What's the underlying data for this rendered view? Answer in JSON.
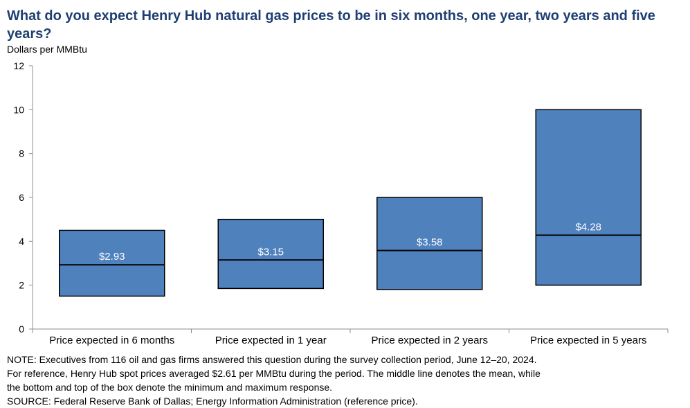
{
  "chart_data": {
    "type": "box",
    "title": "What do you expect Henry Hub natural gas prices to be in six months, one year, two years and five years?",
    "ylabel": "Dollars per MMBtu",
    "ylim": [
      0,
      12
    ],
    "yticks": [
      "0",
      "2",
      "4",
      "6",
      "8",
      "10",
      "12"
    ],
    "categories": [
      "Price expected in 6 months",
      "Price expected in 1 year",
      "Price expected in 2 years",
      "Price expected in 5 years"
    ],
    "min": [
      1.5,
      1.85,
      1.8,
      2.0
    ],
    "max": [
      4.5,
      5.0,
      6.0,
      10.0
    ],
    "mean": [
      2.93,
      3.15,
      3.58,
      4.28
    ],
    "mean_labels": [
      "$2.93",
      "$3.15",
      "$3.58",
      "$4.28"
    ],
    "box_color": "#4f81bd",
    "grid": false,
    "legend": "none"
  },
  "notes": {
    "line1": "NOTE:  Executives from 116 oil and gas firms answered this question  during the survey collection period, June 12–20, 2024.",
    "line2": "For reference,  Henry Hub spot prices averaged  $2.61 per MMBtu  during the period. The middle line denotes the mean, while",
    "line3": "the bottom  and top of the box denote the minimum  and maximum  response.",
    "line4": "SOURCE:  Federal Reserve  Bank of Dallas;  Energy Information Administration  (reference price)."
  }
}
